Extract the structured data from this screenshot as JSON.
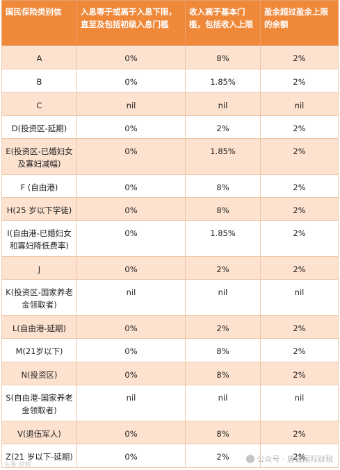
{
  "header": {
    "col1": "国民保险类别信",
    "col2": "入息等于或高于入息下限，直至及包括初级入息门槛",
    "col3": "收入高于基本门槛，包括收入上限",
    "col4": "盈余超过盈余上限的余额"
  },
  "rows": [
    {
      "category": "A",
      "c2": "0%",
      "c3": "8%",
      "c4": "2%"
    },
    {
      "category": "B",
      "c2": "0%",
      "c3": "1.85%",
      "c4": "2%"
    },
    {
      "category": "C",
      "c2": "nil",
      "c3": "nil",
      "c4": "nil"
    },
    {
      "category": "D(投资区-延期)",
      "c2": "0%",
      "c3": "2%",
      "c4": "2%"
    },
    {
      "category": "E(投资区-已婚妇女及寡妇减幅)",
      "c2": "0%",
      "c3": "1.85%",
      "c4": "2%"
    },
    {
      "category": "F (自由港)",
      "c2": "0%",
      "c3": "8%",
      "c4": "2%"
    },
    {
      "category": "H(25 岁以下学徒)",
      "c2": "0%",
      "c3": "8%",
      "c4": "2%"
    },
    {
      "category": "I(自由港-已婚妇女和寡妇降低费率)",
      "c2": "0%",
      "c3": "1.85%",
      "c4": "2%"
    },
    {
      "category": "J",
      "c2": "0%",
      "c3": "2%",
      "c4": "2%"
    },
    {
      "category": "K(投资区-国家养老金领取者)",
      "c2": "nil",
      "c3": "nil",
      "c4": "nil"
    },
    {
      "category": "L(自由港-延期)",
      "c2": "0%",
      "c3": "2%",
      "c4": "2%"
    },
    {
      "category": "M(21岁以下)",
      "c2": "0%",
      "c3": "8%",
      "c4": "2%"
    },
    {
      "category": "N(投资区)",
      "c2": "0%",
      "c3": "8%",
      "c4": "2%"
    },
    {
      "category": "S(自由港-国家养老金领取者)",
      "c2": "nil",
      "c3": "nil",
      "c4": "nil"
    },
    {
      "category": "V(退伍军人)",
      "c2": "0%",
      "c3": "8%",
      "c4": "2%"
    },
    {
      "category": "Z(21 岁以下-延期)",
      "c2": "0%",
      "c3": "2%",
      "c4": "2%"
    }
  ],
  "watermark": {
    "text": "公众号 · 唐诚国际财税",
    "left_text": "头条 财税"
  },
  "colors": {
    "header_bg": "#f0883a",
    "odd_row_bg": "#fde2cf",
    "even_row_bg": "#ffffff"
  }
}
